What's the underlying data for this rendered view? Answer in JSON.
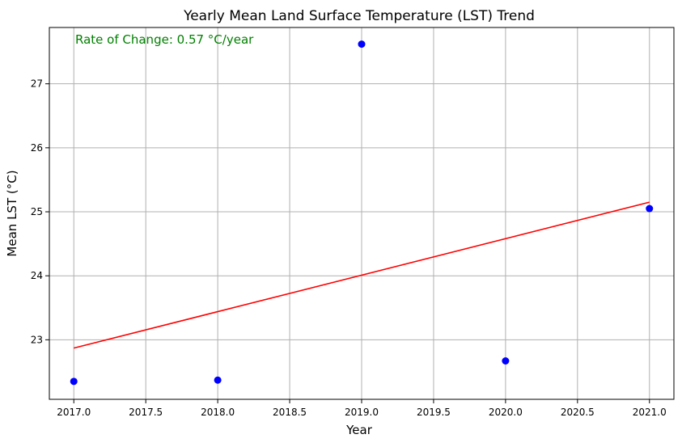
{
  "chart_data": {
    "type": "scatter",
    "title": "Yearly Mean Land Surface Temperature (LST) Trend",
    "xlabel": "Year",
    "ylabel": "Mean LST (°C)",
    "annotation": "Rate of Change: 0.57 °C/year",
    "xlim": [
      2016.83,
      2021.17
    ],
    "ylim": [
      22.07,
      27.88
    ],
    "grid": true,
    "x_ticks": [
      2017.0,
      2017.5,
      2018.0,
      2018.5,
      2019.0,
      2019.5,
      2020.0,
      2020.5,
      2021.0
    ],
    "x_tick_labels": [
      "2017.0",
      "2017.5",
      "2018.0",
      "2018.5",
      "2019.0",
      "2019.5",
      "2020.0",
      "2020.5",
      "2021.0"
    ],
    "y_ticks": [
      23,
      24,
      25,
      26,
      27
    ],
    "y_tick_labels": [
      "23",
      "24",
      "25",
      "26",
      "27"
    ],
    "series": [
      {
        "type": "scatter",
        "color": "#0000ff",
        "x": [
          2017,
          2018,
          2019,
          2020,
          2021
        ],
        "y": [
          22.35,
          22.37,
          27.62,
          22.67,
          25.05
        ]
      },
      {
        "type": "line",
        "color": "#ff0000",
        "x": [
          2017,
          2021
        ],
        "y": [
          22.87,
          25.15
        ]
      }
    ]
  }
}
